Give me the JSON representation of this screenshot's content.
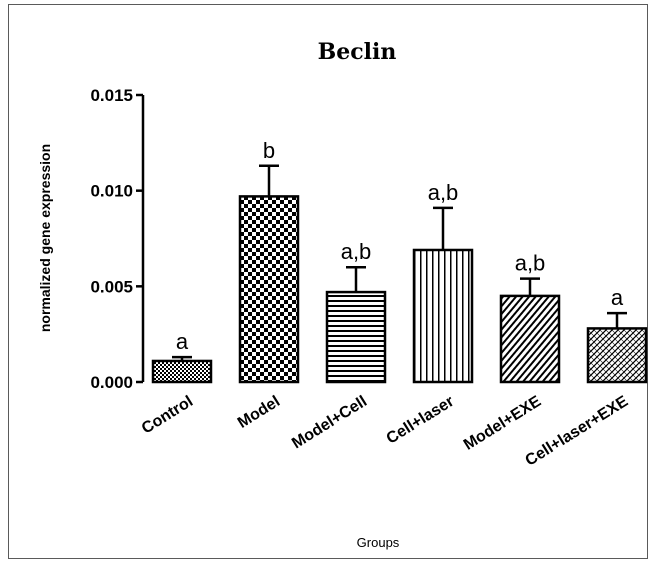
{
  "chart_data": {
    "type": "bar",
    "title": "Beclin",
    "xlabel": "Groups",
    "ylabel": "normalized gene expression",
    "ylim": [
      0,
      0.015
    ],
    "yticks": [
      "0.000",
      "0.005",
      "0.010",
      "0.015"
    ],
    "ytick_values": [
      0,
      0.005,
      0.01,
      0.015
    ],
    "categories": [
      "Control",
      "Model",
      "Model+Cell",
      "Cell+laser",
      "Model+EXE",
      "Cell+laser+EXE"
    ],
    "values": [
      0.0011,
      0.0097,
      0.0047,
      0.0069,
      0.0045,
      0.0028
    ],
    "errors": [
      0.0002,
      0.0016,
      0.0013,
      0.0022,
      0.0009,
      0.0008
    ],
    "significance": [
      "a",
      "b",
      "a,b",
      "a,b",
      "a,b",
      "a"
    ],
    "patterns": [
      "small-checker",
      "large-checker",
      "horizontal-lines",
      "vertical-lines",
      "diagonal-lines",
      "diagonal-crosshatch"
    ],
    "grid": false,
    "colors": {
      "bar_outline": "#000000",
      "fill": "#000000",
      "background": "#ffffff"
    }
  }
}
